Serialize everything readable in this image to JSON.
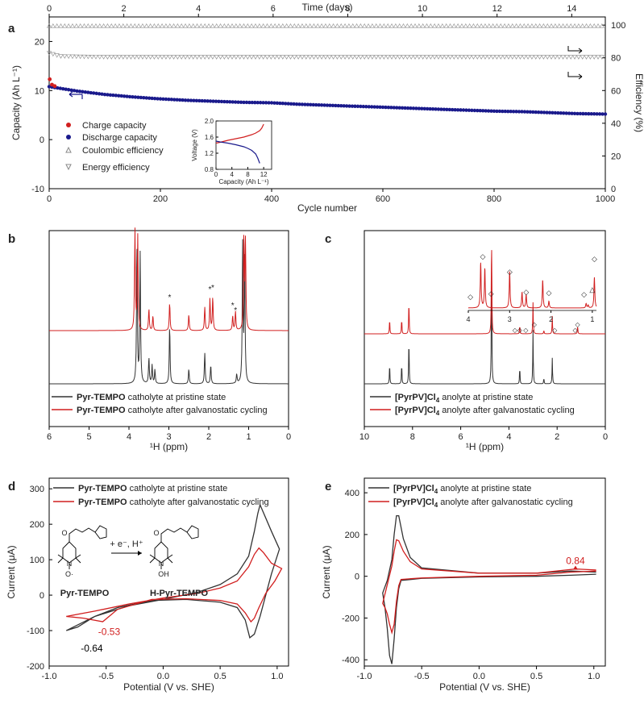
{
  "colors": {
    "red": "#d11f1f",
    "navy": "#1a1a8c",
    "black": "#333333",
    "gray": "#888888"
  },
  "panel_labels": [
    "a",
    "b",
    "c",
    "d",
    "e"
  ],
  "chart_data": [
    {
      "id": "a",
      "type": "scatter",
      "top_axis": {
        "label": "Time (days)",
        "ticks": [
          "0",
          "2",
          "4",
          "6",
          "8",
          "10",
          "12",
          "14"
        ],
        "range": [
          0,
          14.9
        ]
      },
      "xlabel": "Cycle number",
      "xticks": [
        "0",
        "200",
        "400",
        "600",
        "800",
        "1000"
      ],
      "xlim": [
        0,
        1000
      ],
      "ylabel": "Capacity (Ah L⁻¹)",
      "yticks": [
        "-10",
        "0",
        "10",
        "20"
      ],
      "ylim": [
        -10,
        25
      ],
      "y2label": "Efficiency (%)",
      "y2ticks": [
        "0",
        "20",
        "40",
        "60",
        "80",
        "100"
      ],
      "y2lim": [
        0,
        105
      ],
      "legend": [
        "Charge capacity",
        "Discharge capacity",
        "Coulombic efficiency",
        "Energy efficiency"
      ],
      "legend_position": "left",
      "series": [
        {
          "name": "Charge capacity",
          "axis": "left",
          "x": [
            1,
            5,
            10
          ],
          "y": [
            12.3,
            11.2,
            10.9
          ]
        },
        {
          "name": "Discharge capacity",
          "axis": "left",
          "x": [
            0,
            50,
            100,
            150,
            200,
            250,
            300,
            350,
            400,
            450,
            500,
            550,
            600,
            650,
            700,
            750,
            800,
            850,
            900,
            950,
            1000
          ],
          "y": [
            10.8,
            9.9,
            9.2,
            8.7,
            8.3,
            8.0,
            7.8,
            7.6,
            7.5,
            7.2,
            7.0,
            6.8,
            6.6,
            6.4,
            6.2,
            6.0,
            5.8,
            5.7,
            5.5,
            5.3,
            5.2
          ]
        },
        {
          "name": "Coulombic efficiency",
          "axis": "right",
          "x": [
            0,
            1000
          ],
          "y": [
            99.5,
            99.5
          ]
        },
        {
          "name": "Energy efficiency",
          "axis": "right",
          "x": [
            0,
            20,
            100,
            300,
            500,
            700,
            900,
            1000
          ],
          "y": [
            83,
            81,
            80.5,
            80.5,
            80.5,
            80.5,
            80.5,
            80.5
          ]
        }
      ],
      "inset": {
        "xlabel": "Capacity (Ah L⁻¹)",
        "ylabel": "Voltage (V)",
        "xticks": [
          "0",
          "4",
          "8",
          "12"
        ],
        "yticks": [
          "0.8",
          "1.2",
          "1.6",
          "2.0"
        ],
        "xlim": [
          0,
          14
        ],
        "ylim": [
          0.8,
          2.0
        ],
        "charge": {
          "x": [
            0,
            1,
            3,
            5,
            7,
            9,
            10,
            11,
            11.5,
            12
          ],
          "y": [
            1.45,
            1.47,
            1.52,
            1.56,
            1.6,
            1.66,
            1.7,
            1.76,
            1.82,
            1.92
          ]
        },
        "discharge": {
          "x": [
            0,
            1,
            3,
            5,
            7,
            8,
            9,
            10,
            10.5,
            11
          ],
          "y": [
            1.5,
            1.48,
            1.45,
            1.41,
            1.36,
            1.32,
            1.27,
            1.18,
            1.08,
            0.95
          ]
        }
      }
    },
    {
      "id": "b",
      "type": "line",
      "xlabel": "¹H (ppm)",
      "xticks": [
        "6",
        "5",
        "4",
        "3",
        "2",
        "1",
        "0"
      ],
      "xlim": [
        6,
        0
      ],
      "legend": [
        {
          "bold": "Pyr-TEMPO",
          "rest": " catholyte at pristine state"
        },
        {
          "bold": "Pyr-TEMPO",
          "rest": " catholyte after galvanostatic cycling"
        }
      ],
      "series": [
        {
          "name": "pristine",
          "baseline": 0,
          "peaks": [
            [
              3.8,
              1.5
            ],
            [
              3.72,
              1.4
            ],
            [
              3.5,
              0.28
            ],
            [
              3.42,
              0.2
            ],
            [
              3.35,
              0.15
            ],
            [
              2.98,
              0.62
            ],
            [
              2.5,
              0.16
            ],
            [
              2.1,
              0.33
            ],
            [
              1.95,
              0.2
            ],
            [
              1.3,
              0.1
            ],
            [
              1.15,
              1.5
            ],
            [
              1.1,
              1.4
            ]
          ]
        },
        {
          "name": "after cycling",
          "baseline": 1,
          "peaks": [
            [
              3.85,
              1.4
            ],
            [
              3.78,
              1.3
            ],
            [
              3.5,
              0.3
            ],
            [
              3.4,
              0.2
            ],
            [
              2.98,
              0.38
            ],
            [
              2.5,
              0.22
            ],
            [
              2.1,
              0.32
            ],
            [
              1.97,
              0.44
            ],
            [
              1.9,
              0.46
            ],
            [
              1.4,
              0.2
            ],
            [
              1.33,
              0.26
            ],
            [
              1.12,
              1.3
            ],
            [
              1.08,
              1.2
            ]
          ]
        }
      ],
      "markers": [
        "*",
        "*",
        "*",
        "*",
        "*"
      ]
    },
    {
      "id": "c",
      "type": "line",
      "xlabel": "¹H (ppm)",
      "xticks": [
        "10",
        "8",
        "6",
        "4",
        "2",
        "0"
      ],
      "xlim": [
        10,
        0
      ],
      "legend": [
        {
          "bold": "[PyrPV]Cl",
          "sub": "4",
          "rest": " anolyte at pristine state"
        },
        {
          "bold": "[PyrPV]Cl",
          "sub": "4",
          "rest": " anolyte after galvanostatic cycling"
        }
      ],
      "series": [
        {
          "name": "pristine",
          "baseline": 0,
          "peaks": [
            [
              8.95,
              0.22
            ],
            [
              8.45,
              0.22
            ],
            [
              8.15,
              0.5
            ],
            [
              4.72,
              1.5
            ],
            [
              3.55,
              0.18
            ],
            [
              3.0,
              0.58
            ],
            [
              2.55,
              0.06
            ],
            [
              2.2,
              0.28
            ]
          ]
        },
        {
          "name": "after cycling",
          "baseline": 1,
          "peaks": [
            [
              8.95,
              0.22
            ],
            [
              8.45,
              0.22
            ],
            [
              8.15,
              0.5
            ],
            [
              4.72,
              1.5
            ],
            [
              3.55,
              0.12
            ],
            [
              3.0,
              0.46
            ],
            [
              2.55,
              0.05
            ],
            [
              2.2,
              0.26
            ],
            [
              1.15,
              0.12
            ]
          ]
        }
      ],
      "inset": {
        "xticks": [
          "4",
          "3",
          "2",
          "1"
        ],
        "xlim": [
          4,
          0.9
        ],
        "peaks": [
          [
            3.7,
            0.8
          ],
          [
            3.6,
            0.7
          ],
          [
            3.0,
            0.65
          ],
          [
            2.7,
            0.28
          ],
          [
            2.6,
            0.24
          ],
          [
            2.2,
            0.5
          ],
          [
            2.05,
            0.12
          ],
          [
            1.15,
            0.08
          ],
          [
            0.95,
            0.55
          ],
          [
            1.1,
            0.05
          ]
        ],
        "markers": [
          "◇",
          "◇",
          "◇",
          "◇",
          "◇",
          "◇",
          "◇",
          "◇",
          "△"
        ]
      }
    },
    {
      "id": "d",
      "type": "line",
      "xlabel": "Potential (V vs. SHE)",
      "xticks": [
        "-1.0",
        "-0.5",
        "0.0",
        "0.5",
        "1.0"
      ],
      "xlim": [
        -1.0,
        1.1
      ],
      "ylabel": "Current (μA)",
      "yticks": [
        "-200",
        "-100",
        "0",
        "100",
        "200",
        "300"
      ],
      "ylim": [
        -200,
        330
      ],
      "legend": [
        {
          "bold": "Pyr-TEMPO",
          "rest": " catholyte at pristine state"
        },
        {
          "bold": "Pyr-TEMPO",
          "rest": " catholyte after galvanostatic cycling"
        }
      ],
      "annotations": [
        {
          "text": "-0.53",
          "x": -0.53,
          "y": -90,
          "color": "red"
        },
        {
          "text": "-0.64",
          "x": -0.64,
          "y": -130,
          "color": "black"
        }
      ],
      "scheme": {
        "reactant": "Pyr-TEMPO",
        "product": "H-Pyr-TEMPO",
        "arrow_label": "+ e⁻, H⁺"
      },
      "series": [
        {
          "name": "pristine",
          "x": [
            -0.85,
            -0.6,
            -0.3,
            0.0,
            0.3,
            0.5,
            0.65,
            0.75,
            0.8,
            0.83,
            0.85,
            0.95,
            1.02,
            0.95,
            0.9,
            0.85,
            0.8,
            0.76,
            0.72,
            0.65,
            0.5,
            0.2,
            -0.1,
            -0.4,
            -0.6,
            -0.75,
            -0.85
          ],
          "y": [
            -100,
            -60,
            -30,
            -12,
            8,
            30,
            60,
            110,
            180,
            230,
            255,
            180,
            130,
            60,
            0,
            -60,
            -110,
            -120,
            -70,
            -35,
            -20,
            -12,
            -15,
            -35,
            -60,
            -90,
            -100
          ]
        },
        {
          "name": "after cycling",
          "x": [
            -0.85,
            -0.6,
            -0.3,
            0.0,
            0.3,
            0.5,
            0.65,
            0.75,
            0.8,
            0.84,
            0.88,
            0.95,
            1.04,
            0.98,
            0.9,
            0.84,
            0.8,
            0.77,
            0.72,
            0.65,
            0.5,
            0.2,
            -0.1,
            -0.4,
            -0.53,
            -0.7,
            -0.85
          ],
          "y": [
            -60,
            -45,
            -25,
            -8,
            5,
            20,
            40,
            80,
            115,
            133,
            120,
            90,
            75,
            40,
            5,
            -35,
            -65,
            -75,
            -50,
            -25,
            -15,
            -10,
            -12,
            -40,
            -75,
            -65,
            -60
          ]
        }
      ]
    },
    {
      "id": "e",
      "type": "line",
      "xlabel": "Potential (V vs. SHE)",
      "xticks": [
        "-1.0",
        "-0.5",
        "0.0",
        "0.5",
        "1.0"
      ],
      "xlim": [
        -1.0,
        1.1
      ],
      "ylabel": "Current (μA)",
      "yticks": [
        "-400",
        "-200",
        "0",
        "200",
        "400"
      ],
      "ylim": [
        -430,
        470
      ],
      "legend": [
        {
          "bold": "[PyrPV]Cl",
          "sub": "4",
          "rest": " anolyte at pristine state"
        },
        {
          "bold": "[PyrPV]Cl",
          "sub": "4",
          "rest": " anolyte after galvanostatic cycling"
        }
      ],
      "annotations": [
        {
          "text": "0.84",
          "x": 0.84,
          "y": 70,
          "color": "red"
        }
      ],
      "series": [
        {
          "name": "pristine",
          "x": [
            1.02,
            0.8,
            0.5,
            0.0,
            -0.5,
            -0.68,
            -0.7,
            -0.72,
            -0.74,
            -0.76,
            -0.78,
            -0.8,
            -0.82,
            -0.84,
            -0.8,
            -0.76,
            -0.74,
            -0.72,
            -0.7,
            -0.66,
            -0.6,
            -0.5,
            0.0,
            0.5,
            0.8,
            1.02
          ],
          "y": [
            10,
            5,
            0,
            -3,
            -10,
            -20,
            -60,
            -150,
            -300,
            -420,
            -380,
            -250,
            -150,
            -80,
            -20,
            80,
            200,
            290,
            290,
            180,
            90,
            40,
            15,
            15,
            25,
            20
          ]
        },
        {
          "name": "after cycling",
          "x": [
            1.02,
            0.8,
            0.5,
            0.0,
            -0.5,
            -0.68,
            -0.7,
            -0.72,
            -0.74,
            -0.76,
            -0.78,
            -0.8,
            -0.82,
            -0.84,
            -0.8,
            -0.76,
            -0.74,
            -0.72,
            -0.7,
            -0.66,
            -0.6,
            -0.5,
            0.0,
            0.5,
            0.84,
            1.02
          ],
          "y": [
            25,
            20,
            5,
            0,
            -8,
            -15,
            -45,
            -120,
            -230,
            -270,
            -230,
            -180,
            -150,
            -130,
            -40,
            50,
            120,
            175,
            170,
            120,
            70,
            35,
            15,
            15,
            35,
            30
          ]
        }
      ]
    }
  ]
}
